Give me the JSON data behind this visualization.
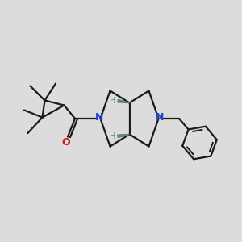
{
  "background_color": "#dcdcdc",
  "bond_color": "#1a1a1a",
  "nitrogen_color": "#2244cc",
  "oxygen_color": "#cc2200",
  "stereo_bond_color": "#5a8888",
  "figsize": [
    3.0,
    3.0
  ],
  "dpi": 100,
  "xlim": [
    0,
    10
  ],
  "ylim": [
    0,
    10
  ]
}
